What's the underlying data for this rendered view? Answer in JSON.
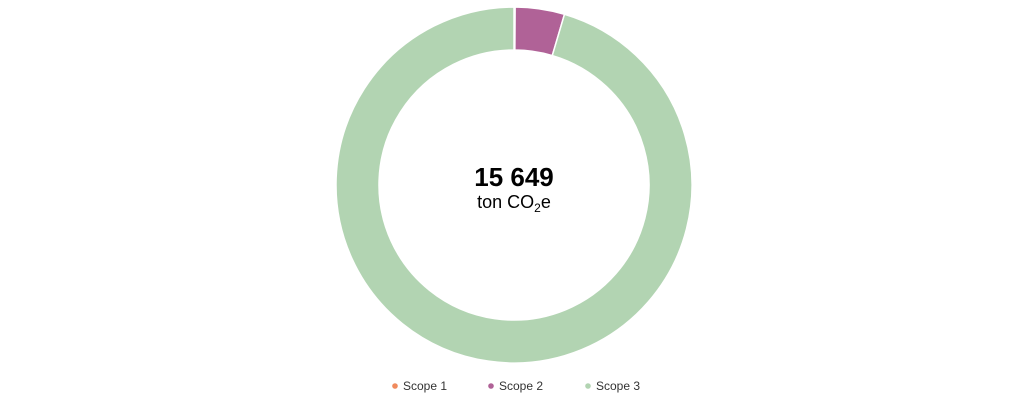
{
  "chart_data": {
    "type": "pie",
    "donut": true,
    "center_value": "15 649",
    "center_unit": {
      "prefix": "ton CO",
      "subscript": "2",
      "suffix": "e"
    },
    "categories": [
      "Scope 1",
      "Scope 2",
      "Scope 3"
    ],
    "values": [
      16,
      700,
      14933
    ],
    "colors": [
      "#f08a5d",
      "#b06297",
      "#b2d4b2"
    ],
    "legend_position": "bottom",
    "start_angle_deg": 0,
    "direction": "clockwise"
  }
}
